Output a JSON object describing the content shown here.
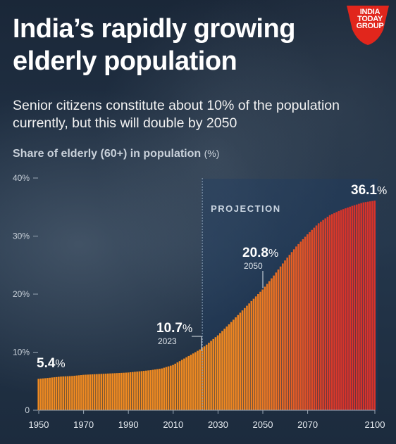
{
  "header": {
    "title": "India’s rapidly growing elderly population",
    "subtitle": "Senior citizens constitute about 10% of the population currently, but this will double by 2050"
  },
  "logo": {
    "line1": "INDIA",
    "line2": "TODAY",
    "line3": "GROUP",
    "color": "#e1261c"
  },
  "chart_data": {
    "type": "bar",
    "title": "Share of elderly (60+) in population",
    "unit": "(%)",
    "x_range": [
      1950,
      2100
    ],
    "ylim": [
      0,
      40
    ],
    "y_ticks": [
      "0",
      "10%",
      "20%",
      "30%",
      "40%"
    ],
    "x_ticks": [
      "1950",
      "1970",
      "1990",
      "2010",
      "2030",
      "2050",
      "2070",
      "2100"
    ],
    "projection_start": 2023,
    "projection_label": "PROJECTION",
    "series": [
      {
        "x": [
          1950,
          1955,
          1960,
          1965,
          1970,
          1975,
          1980,
          1985,
          1990,
          1995,
          2000,
          2005,
          2010,
          2015,
          2020,
          2023,
          2025,
          2030,
          2035,
          2040,
          2045,
          2050,
          2055,
          2060,
          2065,
          2070,
          2075,
          2080,
          2085,
          2090,
          2095,
          2100
        ],
        "values": [
          5.4,
          5.6,
          5.8,
          5.9,
          6.1,
          6.2,
          6.3,
          6.4,
          6.5,
          6.7,
          6.9,
          7.2,
          7.8,
          8.9,
          10.0,
          10.7,
          11.3,
          12.9,
          14.8,
          16.8,
          18.8,
          20.8,
          23.2,
          25.8,
          28.2,
          30.3,
          32.2,
          33.6,
          34.5,
          35.2,
          35.8,
          36.1
        ]
      }
    ],
    "annotations": [
      {
        "x": 1950,
        "value": "5.4",
        "pct": "%",
        "year": ""
      },
      {
        "x": 2023,
        "value": "10.7",
        "pct": "%",
        "year": "2023"
      },
      {
        "x": 2050,
        "value": "20.8",
        "pct": "%",
        "year": "2050"
      },
      {
        "x": 2100,
        "value": "36.1",
        "pct": "%",
        "year": ""
      }
    ],
    "colors": {
      "bottom": "#f08a21",
      "top_end": "#d8332a",
      "grid": "#9aa8b6"
    }
  }
}
